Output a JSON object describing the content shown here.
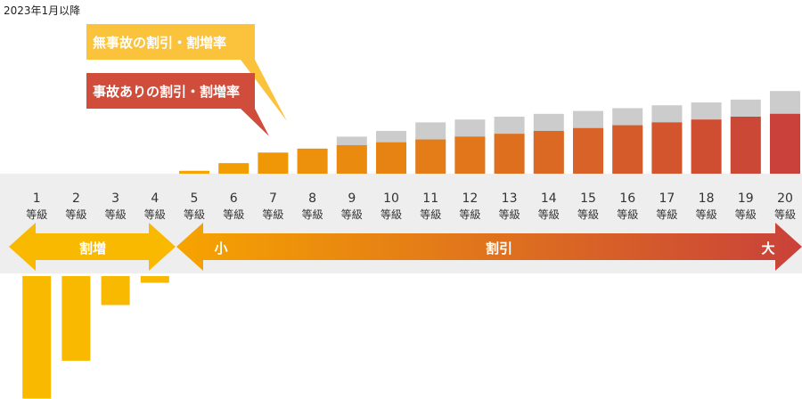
{
  "note": "2023年1月以降",
  "colors": {
    "gray": "#cccccc",
    "band": "#eeeeee",
    "orange": "#f6a400",
    "red": "#c9413a",
    "yellow": "#f9b900",
    "callout_yellow": "#fbc23c",
    "callout_red": "#d04c3b"
  },
  "callouts": {
    "no_accident": "無事故の割引・割増率",
    "accident": "事故ありの割引・割増率"
  },
  "arrows": {
    "surcharge": "割増",
    "small": "小",
    "discount": "割引",
    "large": "大"
  },
  "chart_data": {
    "type": "bar",
    "title": "",
    "unit": "等級",
    "categories": [
      "1",
      "2",
      "3",
      "4",
      "5",
      "6",
      "7",
      "8",
      "9",
      "10",
      "11",
      "12",
      "13",
      "14",
      "15",
      "16",
      "17",
      "18",
      "19",
      "20"
    ],
    "series": [
      {
        "name": "無事故の割引・割増率",
        "values": [
          null,
          null,
          null,
          null,
          null,
          null,
          null,
          8,
          13,
          15,
          18,
          19,
          20,
          21,
          22,
          23,
          24,
          25,
          26,
          29
        ]
      },
      {
        "name": "事故ありの割引・割増率",
        "values": [
          -55,
          -38,
          -13,
          -3,
          1,
          3.7,
          7.4,
          8.8,
          10,
          11,
          12,
          13,
          14,
          15,
          16,
          17,
          18,
          19,
          20,
          21
        ]
      }
    ]
  }
}
